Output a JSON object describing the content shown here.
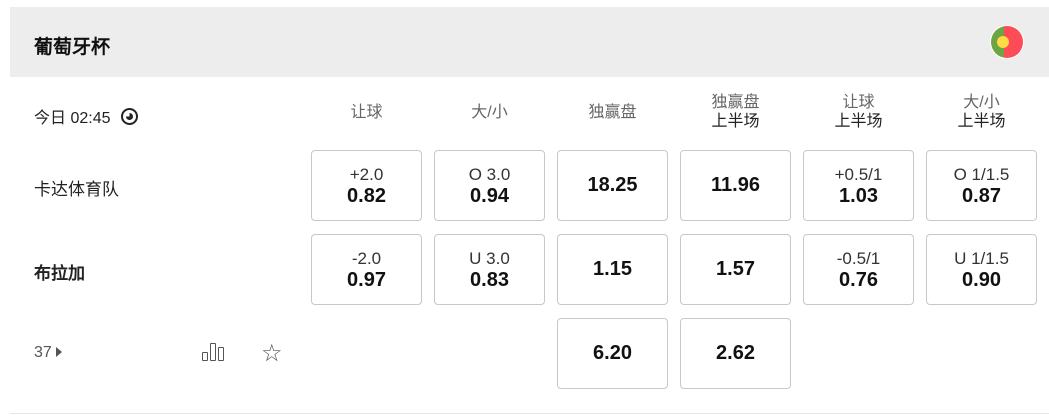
{
  "league": {
    "title": "葡萄牙杯",
    "flag_icon": "portugal-flag-icon",
    "flag_colors": [
      "#6da544",
      "#ff4b55",
      "#ffda44"
    ]
  },
  "match": {
    "time": "今日 02:45",
    "more_count": "37"
  },
  "columns": [
    {
      "line1": "让球",
      "line2": ""
    },
    {
      "line1": "大/小",
      "line2": ""
    },
    {
      "line1": "独赢盘",
      "line2": ""
    },
    {
      "line1": "独赢盘",
      "line2": "上半场"
    },
    {
      "line1": "让球",
      "line2": "上半场"
    },
    {
      "line1": "大/小",
      "line2": "上半场"
    }
  ],
  "teams": [
    {
      "name": "卡达体育队",
      "bold": false,
      "odds": [
        {
          "label": "+2.0",
          "value": "0.82"
        },
        {
          "label": "O 3.0",
          "value": "0.94"
        },
        {
          "label": "",
          "value": "18.25"
        },
        {
          "label": "",
          "value": "11.96"
        },
        {
          "label": "+0.5/1",
          "value": "1.03"
        },
        {
          "label": "O 1/1.5",
          "value": "0.87"
        }
      ]
    },
    {
      "name": "布拉加",
      "bold": true,
      "odds": [
        {
          "label": "-2.0",
          "value": "0.97"
        },
        {
          "label": "U 3.0",
          "value": "0.83"
        },
        {
          "label": "",
          "value": "1.15"
        },
        {
          "label": "",
          "value": "1.57"
        },
        {
          "label": "-0.5/1",
          "value": "0.76"
        },
        {
          "label": "U 1/1.5",
          "value": "0.90"
        }
      ]
    }
  ],
  "draw": {
    "odds": [
      {
        "col": 2,
        "value": "6.20"
      },
      {
        "col": 3,
        "value": "2.62"
      }
    ]
  }
}
